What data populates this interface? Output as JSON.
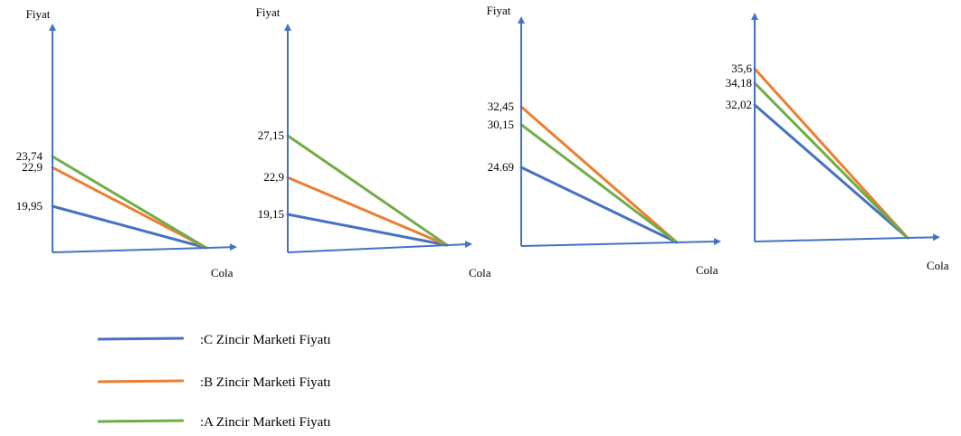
{
  "colors": {
    "axis": "#4472C4",
    "C": "#4472C4",
    "B": "#ED7D31",
    "A": "#70AD47"
  },
  "legend": [
    {
      "key": "C",
      "label": ":C Zincir Marketi Fiyatı"
    },
    {
      "key": "B",
      "label": ":B Zincir Marketi Fiyatı"
    },
    {
      "key": "A",
      "label": ":A Zincir Marketi Fiyatı"
    }
  ],
  "chart_data": [
    {
      "type": "line",
      "ylabel": "Fiyat",
      "xlabel": "Cola",
      "series": [
        {
          "key": "C",
          "value": 19.95,
          "label": "19,95"
        },
        {
          "key": "B",
          "value": 22.9,
          "label": "22,9"
        },
        {
          "key": "A",
          "value": 23.74,
          "label": "23,74"
        }
      ]
    },
    {
      "type": "line",
      "ylabel": "Fiyat",
      "xlabel": "Cola",
      "series": [
        {
          "key": "C",
          "value": 19.15,
          "label": "19,15"
        },
        {
          "key": "B",
          "value": 22.9,
          "label": "22,9"
        },
        {
          "key": "A",
          "value": 27.15,
          "label": "27,15"
        }
      ]
    },
    {
      "type": "line",
      "ylabel": "Fiyat",
      "xlabel": "Cola",
      "series": [
        {
          "key": "C",
          "value": 24.69,
          "label": "24.69"
        },
        {
          "key": "B",
          "value": 32.45,
          "label": "32,45"
        },
        {
          "key": "A",
          "value": 30.15,
          "label": "30,15"
        }
      ]
    },
    {
      "type": "line",
      "ylabel": "",
      "xlabel": "Cola",
      "series": [
        {
          "key": "C",
          "value": 32.02,
          "label": "32,02"
        },
        {
          "key": "B",
          "value": 35.6,
          "label": "35,6"
        },
        {
          "key": "A",
          "value": 34.18,
          "label": "34,18"
        }
      ]
    }
  ]
}
